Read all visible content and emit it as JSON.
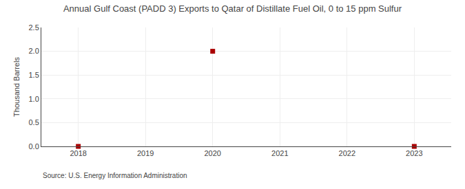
{
  "chart_data": {
    "type": "scatter",
    "title": "Annual Gulf Coast (PADD 3) Exports to Qatar of Distillate Fuel Oil, 0 to 15 ppm Sulfur",
    "y_label": "Thousand Barrels",
    "annotations": [
      "Source: U.S. Energy Information Administration"
    ],
    "x": [
      2018,
      2020,
      2023
    ],
    "values": [
      0.0,
      2.0,
      0.0
    ],
    "color": "#aa0000",
    "marker": "square",
    "xlim": [
      2017.45,
      2023.55
    ],
    "xticks": [
      2018,
      2019,
      2020,
      2021,
      2022,
      2023
    ],
    "ylim": [
      0.0,
      2.5
    ],
    "yticks": [
      {
        "value": 0.0,
        "label": "0.0"
      },
      0.5,
      {
        "value": 1.0,
        "label": "1.0"
      },
      1.5,
      {
        "value": 2.0,
        "label": "2.0"
      },
      2.5
    ],
    "grid": true
  }
}
